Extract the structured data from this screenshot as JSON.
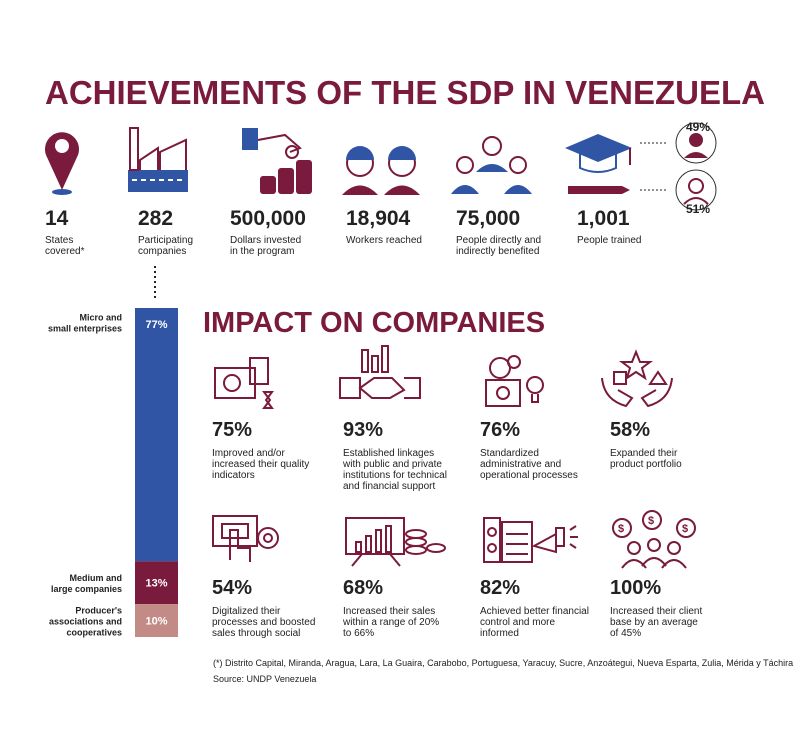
{
  "header": {
    "title": "ACHIEVEMENTS OF THE SDP IN VENEZUELA"
  },
  "stats": [
    {
      "value": "14",
      "label": [
        "States",
        "covered*"
      ]
    },
    {
      "value": "282",
      "label": [
        "Participating",
        "companies"
      ]
    },
    {
      "value": "500,000",
      "label": [
        "Dollars invested",
        "in the program"
      ]
    },
    {
      "value": "18,904",
      "label": [
        "Workers reached"
      ]
    },
    {
      "value": "75,000",
      "label": [
        "People directly and",
        "indirectly benefited"
      ]
    },
    {
      "value": "1,001",
      "label": [
        "People trained"
      ]
    }
  ],
  "gender": {
    "female": "49%",
    "male": "51%"
  },
  "breakdown": {
    "segments": [
      {
        "label": [
          "Micro and",
          "small enterprises"
        ],
        "value": 77,
        "value_label": "77%",
        "color": "#2f55a4"
      },
      {
        "label": [
          "Medium and",
          "large companies"
        ],
        "value": 13,
        "value_label": "13%",
        "color": "#7a1a3c"
      },
      {
        "label": [
          "Producer's",
          "associations and",
          "cooperatives"
        ],
        "value": 10,
        "value_label": "10%",
        "color": "#c38b86"
      }
    ]
  },
  "impact": {
    "title": "IMPACT ON COMPANIES",
    "items": [
      {
        "value": "75%",
        "label": [
          "Improved and/or",
          "increased their quality",
          "indicators"
        ]
      },
      {
        "value": "93%",
        "label": [
          "Established linkages",
          "with public and private",
          "institutions for technical",
          "and financial support"
        ]
      },
      {
        "value": "76%",
        "label": [
          "Standardized",
          "administrative and",
          "operational processes"
        ]
      },
      {
        "value": "58%",
        "label": [
          "Expanded their",
          "product portfolio"
        ]
      },
      {
        "value": "54%",
        "label": [
          "Digitalized their",
          "processes and boosted",
          "sales through social"
        ]
      },
      {
        "value": "68%",
        "label": [
          "Increased their sales",
          "within a range of 20%",
          "to 66%"
        ]
      },
      {
        "value": "82%",
        "label": [
          "Achieved better financial",
          "control and more",
          "informed"
        ]
      },
      {
        "value": "100%",
        "label": [
          "Increased their client",
          "base by an average",
          "of 45%"
        ]
      }
    ]
  },
  "footer": {
    "note": "(*) Distrito Capital, Miranda, Aragua, Lara, La Guaira, Carabobo, Portuguesa, Yaracuy, Sucre, Anzoátegui, Nueva Esparta, Zulia, Mérida y Táchira",
    "source": "Source: UNDP Venezuela"
  }
}
